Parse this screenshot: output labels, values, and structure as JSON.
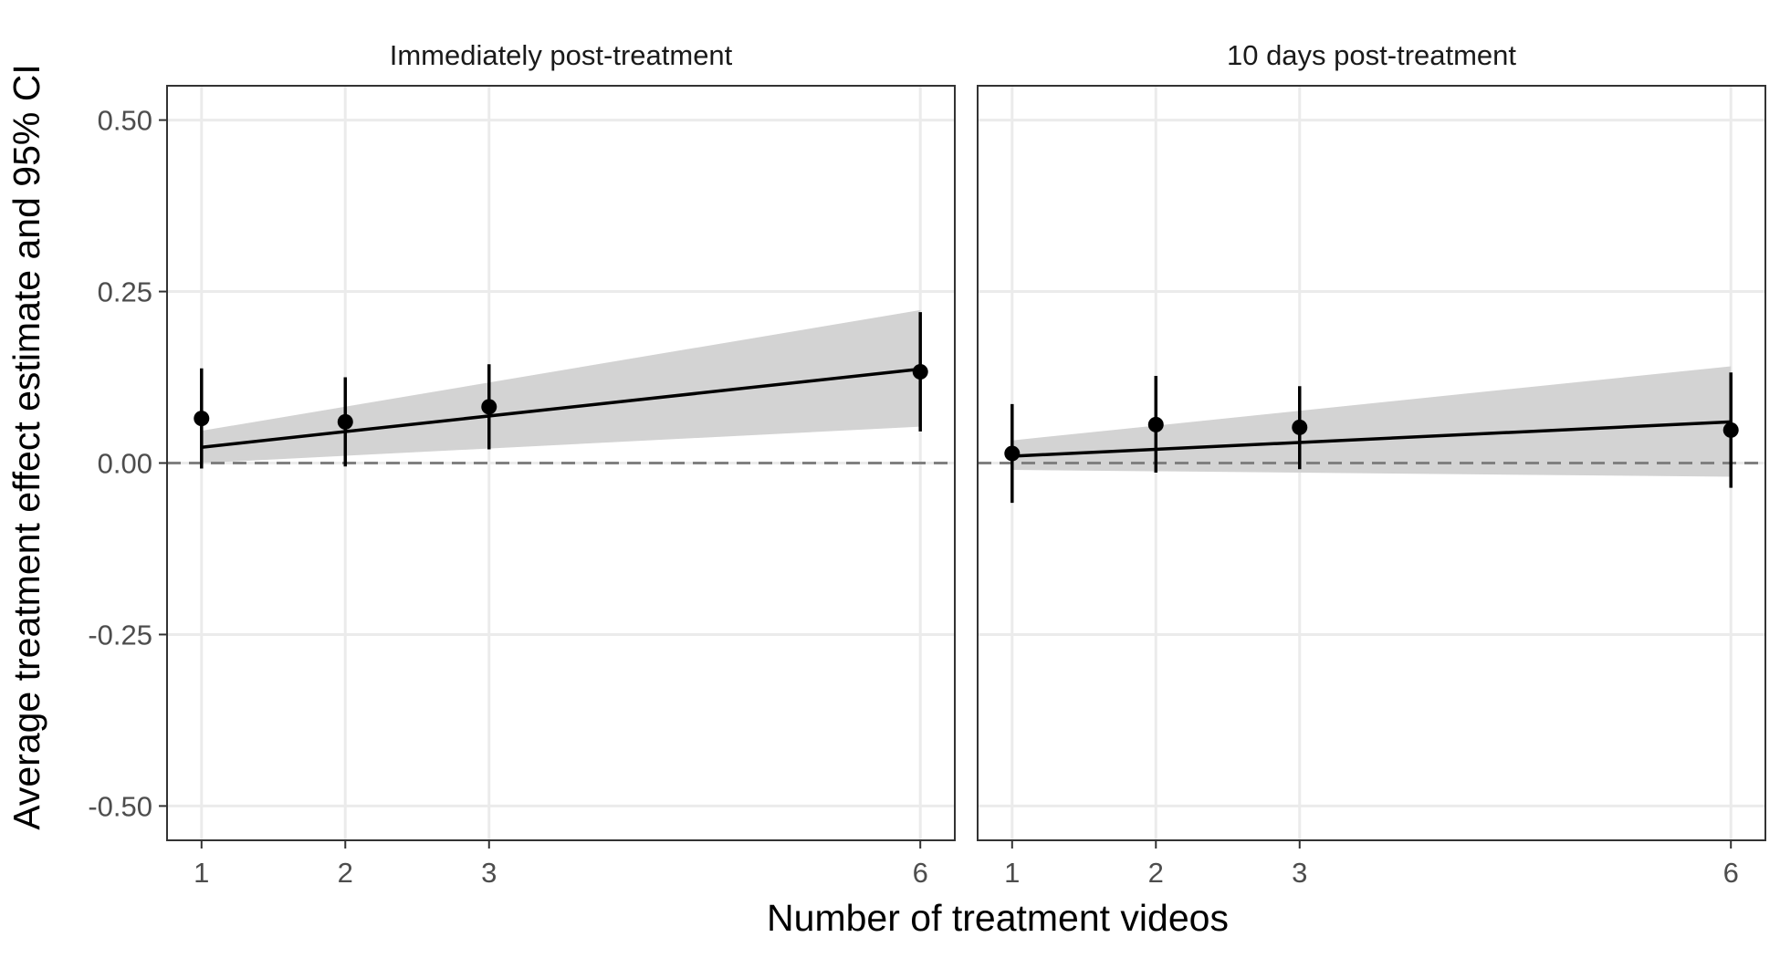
{
  "chart_data": {
    "type": "scatter",
    "xlabel": "Number of treatment videos",
    "ylabel": "Average treatment effect estimate and 95% CI",
    "xlim": [
      0.76,
      6.24
    ],
    "ylim": [
      -0.55,
      0.55
    ],
    "x_ticks": [
      1,
      2,
      3,
      6
    ],
    "y_ticks": [
      0.5,
      0.25,
      0.0,
      -0.25,
      -0.5
    ],
    "y_tick_labels": [
      "0.50",
      "0.25",
      "0.00",
      "-0.25",
      "-0.50"
    ],
    "x_tick_labels": [
      "1",
      "2",
      "3",
      "6"
    ],
    "grid": true,
    "reference_line": 0,
    "colors": {
      "points": "#000000",
      "ribbon": "#d3d3d3",
      "grid": "#ebebeb",
      "reference": "#808080",
      "border": "#333333"
    },
    "panels": [
      {
        "title": "Immediately post-treatment",
        "points": [
          {
            "x": 1,
            "estimate": 0.065,
            "lower": -0.008,
            "upper": 0.138
          },
          {
            "x": 2,
            "estimate": 0.06,
            "lower": -0.005,
            "upper": 0.125
          },
          {
            "x": 3,
            "estimate": 0.082,
            "lower": 0.02,
            "upper": 0.144
          },
          {
            "x": 6,
            "estimate": 0.133,
            "lower": 0.046,
            "upper": 0.22
          }
        ],
        "fit": {
          "x": [
            1,
            6
          ],
          "y": [
            0.023,
            0.137
          ],
          "lower": [
            0.0,
            0.053
          ],
          "upper": [
            0.047,
            0.223
          ]
        }
      },
      {
        "title": "10 days post-treatment",
        "points": [
          {
            "x": 1,
            "estimate": 0.014,
            "lower": -0.058,
            "upper": 0.086
          },
          {
            "x": 2,
            "estimate": 0.056,
            "lower": -0.014,
            "upper": 0.127
          },
          {
            "x": 3,
            "estimate": 0.052,
            "lower": -0.009,
            "upper": 0.112
          },
          {
            "x": 6,
            "estimate": 0.048,
            "lower": -0.036,
            "upper": 0.132
          }
        ],
        "fit": {
          "x": [
            1,
            6
          ],
          "y": [
            0.01,
            0.06
          ],
          "lower": [
            -0.01,
            -0.02
          ],
          "upper": [
            0.033,
            0.141
          ]
        }
      }
    ]
  }
}
